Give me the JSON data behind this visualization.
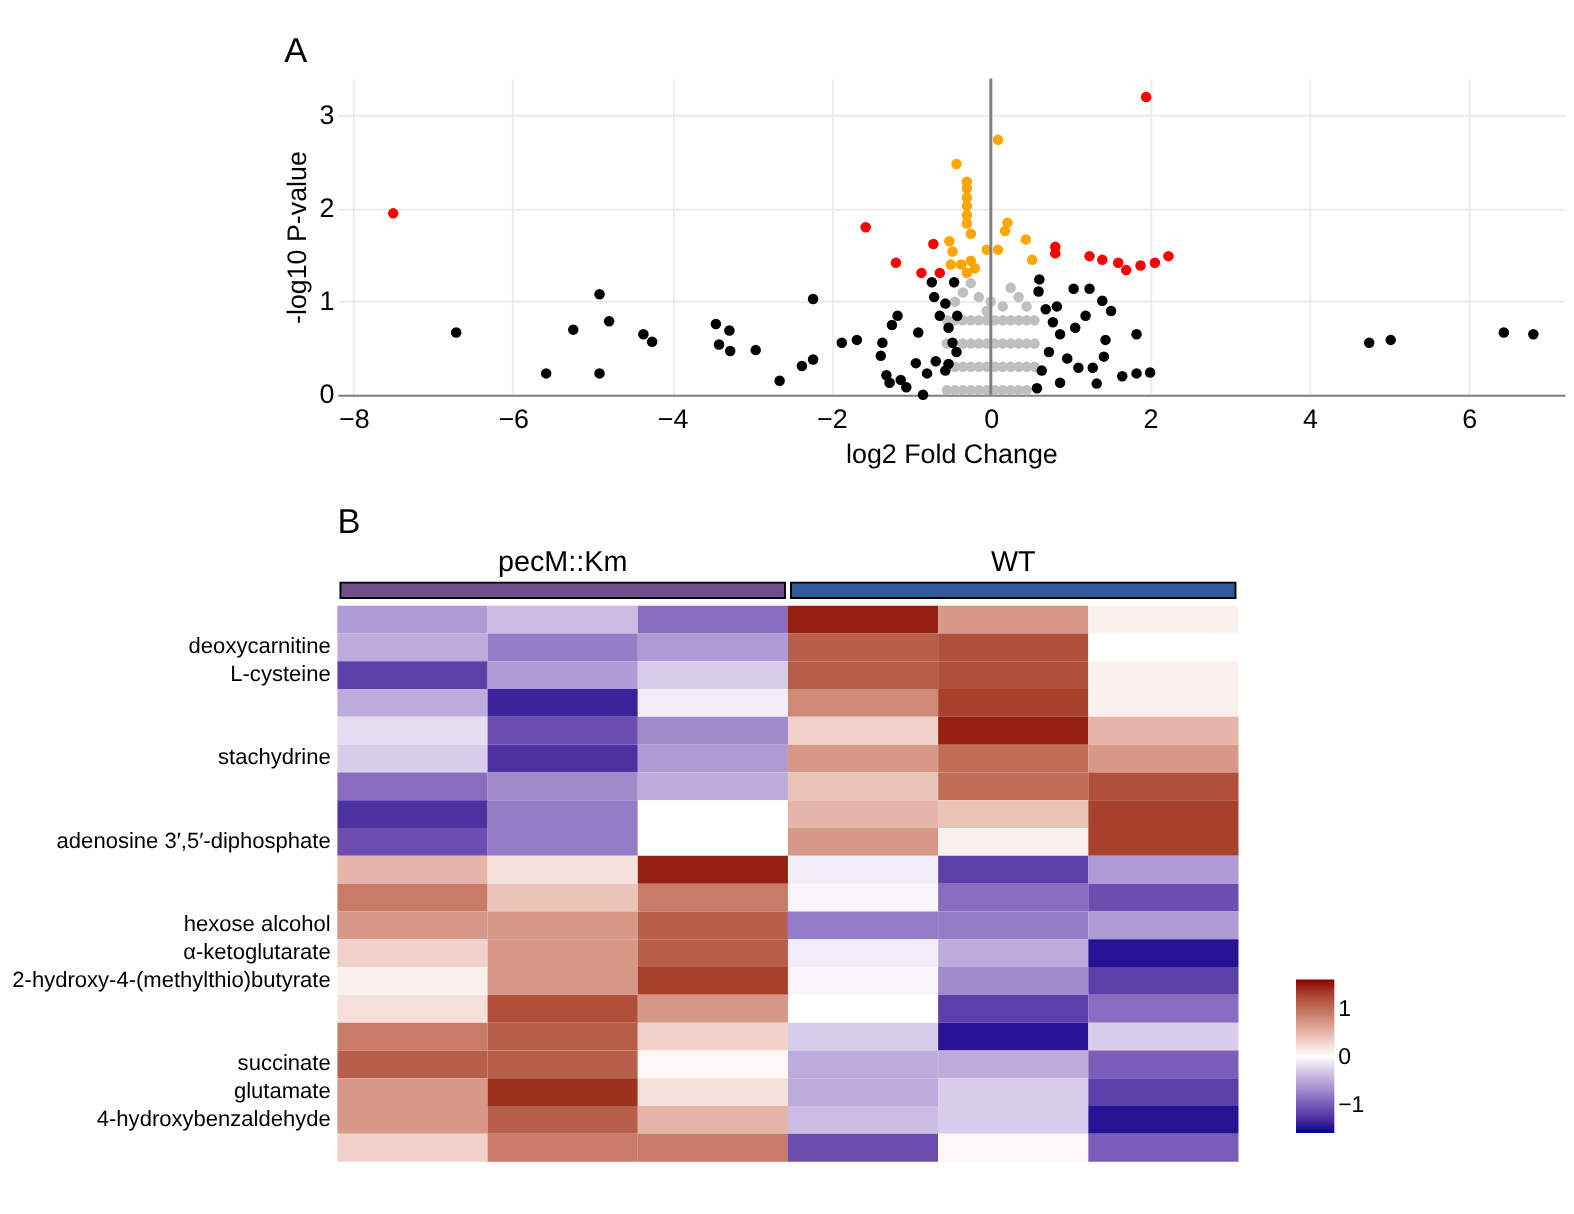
{
  "chart_data": [
    {
      "type": "scatter",
      "title": "A",
      "xlabel": "log2 Fold Change",
      "ylabel": "-log10 P-value",
      "xlim": [
        -8.2,
        7.2
      ],
      "ylim": [
        0,
        3.4
      ],
      "xticks": [
        -8,
        -6,
        -4,
        -2,
        0,
        2,
        4,
        6
      ],
      "yticks": [
        0,
        1,
        2,
        3
      ],
      "grid": true,
      "legend": false,
      "marker": "circle",
      "ref_lines": [
        {
          "axis": "x",
          "value": 0,
          "color": "#7f7f7f"
        }
      ],
      "series": [
        {
          "color": "#bfbfbf",
          "x": [
            -0.55,
            -0.45,
            -0.35,
            -0.25,
            -0.15,
            -0.05,
            0.05,
            0.15,
            0.25,
            0.35,
            0.45,
            -0.45,
            -0.35,
            -0.25,
            -0.15,
            -0.05,
            0.05,
            0.15,
            0.25,
            0.35,
            0.45,
            0.55,
            -0.55,
            -0.35,
            -0.25,
            -0.15,
            -0.05,
            0.05,
            0.15,
            0.25,
            0.35,
            0.45,
            0.55,
            -0.55,
            -0.45,
            -0.35,
            -0.25,
            -0.15,
            -0.05,
            0.05,
            0.15,
            0.25,
            0.35,
            0.45,
            0.55,
            -0.35,
            -0.25,
            -0.15,
            0.25,
            0.35,
            0.15,
            -0.45,
            0.45,
            0.0,
            -0.05
          ],
          "values": [
            0.05,
            0.05,
            0.05,
            0.05,
            0.05,
            0.05,
            0.05,
            0.05,
            0.05,
            0.05,
            0.05,
            0.3,
            0.3,
            0.3,
            0.3,
            0.3,
            0.3,
            0.3,
            0.3,
            0.3,
            0.3,
            0.3,
            0.55,
            0.55,
            0.55,
            0.55,
            0.55,
            0.55,
            0.55,
            0.55,
            0.55,
            0.55,
            0.55,
            0.8,
            0.8,
            0.8,
            0.8,
            0.8,
            0.8,
            0.8,
            0.8,
            0.8,
            0.8,
            0.8,
            0.8,
            1.1,
            1.2,
            1.05,
            1.15,
            1.05,
            0.95,
            1.0,
            0.95,
            1.0,
            0.9
          ]
        },
        {
          "color": "#000000",
          "x": [
            -6.71,
            -5.58,
            -5.24,
            -4.91,
            -4.91,
            -4.79,
            -4.36,
            -4.25,
            -3.45,
            -3.41,
            -3.28,
            -3.27,
            -2.95,
            -2.65,
            -2.37,
            -2.23,
            -2.23,
            -1.87,
            -1.68,
            -1.36,
            -1.38,
            -1.17,
            -1.24,
            -1.31,
            -1.27,
            -1.13,
            -1.06,
            -0.94,
            -0.91,
            -0.85,
            -0.8,
            -0.74,
            -0.71,
            -0.64,
            -0.69,
            -0.57,
            -0.53,
            -0.57,
            -0.53,
            -0.46,
            -0.43,
            -0.48,
            -0.42,
            4.75,
            5.02,
            6.44,
            6.81,
            1.83,
            1.65,
            1.83,
            2.0,
            1.33,
            1.28,
            1.42,
            1.4,
            1.51,
            1.44,
            1.24,
            1.04,
            1.1,
            0.61,
            0.6,
            0.69,
            0.78,
            0.87,
            0.73,
            0.64,
            0.87,
            0.96,
            1.06,
            1.19,
            0.58,
            0.83
          ],
          "values": [
            0.67,
            0.23,
            0.7,
            1.08,
            0.23,
            0.79,
            0.65,
            0.57,
            0.76,
            0.54,
            0.69,
            0.47,
            0.48,
            0.15,
            0.31,
            1.03,
            0.38,
            0.56,
            0.59,
            0.56,
            0.42,
            0.85,
            0.75,
            0.21,
            0.13,
            0.16,
            0.08,
            0.34,
            0.67,
            0.0,
            0.23,
            1.21,
            1.05,
            0.85,
            0.36,
            0.98,
            0.72,
            0.26,
            0.33,
            1.21,
            0.46,
            0.56,
            0.85,
            0.56,
            0.59,
            0.67,
            0.65,
            0.65,
            0.2,
            0.23,
            0.24,
            0.12,
            0.29,
            0.41,
            1.01,
            0.9,
            0.59,
            1.14,
            1.14,
            0.29,
            1.24,
            1.11,
            0.92,
            0.78,
            0.65,
            0.46,
            0.26,
            0.13,
            0.39,
            0.72,
            0.85,
            0.07,
            0.95
          ]
        },
        {
          "color": "#ffa500",
          "x": [
            0.09,
            -0.43,
            -0.3,
            -0.3,
            -0.3,
            -0.3,
            -0.3,
            -0.3,
            -0.25,
            0.21,
            0.18,
            -0.52,
            -0.48,
            -0.05,
            0.09,
            0.44,
            0.52,
            -0.5,
            -0.25,
            -0.2,
            -0.3,
            -0.37
          ],
          "values": [
            2.74,
            2.48,
            2.29,
            2.22,
            2.12,
            2.03,
            1.93,
            1.84,
            1.73,
            1.85,
            1.76,
            1.65,
            1.54,
            1.56,
            1.56,
            1.67,
            1.45,
            1.4,
            1.44,
            1.36,
            1.31,
            1.4
          ]
        },
        {
          "color": "#ff0000",
          "x": [
            -7.5,
            -1.57,
            -1.19,
            -0.72,
            -0.87,
            -0.64,
            0.81,
            0.81,
            1.24,
            1.4,
            1.6,
            1.7,
            1.88,
            2.06,
            2.23,
            1.95
          ],
          "values": [
            1.95,
            1.8,
            1.42,
            1.62,
            1.31,
            1.31,
            1.59,
            1.52,
            1.49,
            1.45,
            1.42,
            1.34,
            1.39,
            1.42,
            1.49,
            3.2
          ]
        }
      ]
    },
    {
      "type": "heatmap",
      "title": "B",
      "clim": [
        -1.6,
        1.6
      ],
      "cticks": [
        -1,
        0,
        1
      ],
      "annotations": [
        "pecM::Km",
        "WT"
      ],
      "categories": [
        null,
        null,
        null,
        null,
        null,
        null
      ],
      "y_categories": [
        null,
        "deoxycarnitine",
        "L-cysteine",
        null,
        null,
        "stachydrine",
        null,
        null,
        "adenosine 3′,5′-diphosphate",
        null,
        null,
        "hexose alcohol",
        "α-ketoglutarate",
        "2-hydroxy-4-(methylthio)butyrate",
        null,
        null,
        "succinate",
        "glutamate",
        "4-hydroxybenzaldehyde",
        null
      ],
      "cells": [
        [
          -0.6,
          -0.4,
          -0.9,
          1.5,
          0.7,
          0.1
        ],
        [
          -0.5,
          -0.8,
          -0.6,
          1.1,
          1.2,
          0.0
        ],
        [
          -1.2,
          -0.6,
          -0.3,
          1.1,
          1.2,
          0.1
        ],
        [
          -0.5,
          -1.4,
          -0.1,
          0.8,
          1.3,
          0.1
        ],
        [
          -0.2,
          -1.1,
          -0.7,
          0.3,
          1.5,
          0.5
        ],
        [
          -0.3,
          -1.3,
          -0.6,
          0.7,
          1.0,
          0.7
        ],
        [
          -0.9,
          -0.7,
          -0.5,
          0.4,
          1.0,
          1.2
        ],
        [
          -1.3,
          -0.8,
          0.0,
          0.5,
          0.4,
          1.3
        ],
        [
          -1.1,
          -0.8,
          0.0,
          0.7,
          0.1,
          1.3
        ],
        [
          0.5,
          0.2,
          1.5,
          -0.1,
          -1.2,
          -0.6
        ],
        [
          0.9,
          0.4,
          0.9,
          -0.05,
          -0.9,
          -1.1
        ],
        [
          0.7,
          0.7,
          1.1,
          -0.8,
          -0.8,
          -0.6
        ],
        [
          0.3,
          0.7,
          1.1,
          -0.1,
          -0.5,
          -1.5
        ],
        [
          0.1,
          0.7,
          1.3,
          -0.05,
          -0.7,
          -1.2
        ],
        [
          0.2,
          1.2,
          0.7,
          0.0,
          -1.2,
          -0.9
        ],
        [
          0.9,
          1.1,
          0.3,
          -0.3,
          -1.5,
          -0.3
        ],
        [
          1.1,
          1.1,
          0.05,
          -0.5,
          -0.5,
          -1.0
        ],
        [
          0.7,
          1.4,
          0.2,
          -0.5,
          -0.3,
          -1.2
        ],
        [
          0.7,
          1.1,
          0.5,
          -0.4,
          -0.3,
          -1.5
        ],
        [
          0.3,
          0.9,
          0.9,
          -1.1,
          0.05,
          -1.0
        ]
      ]
    }
  ]
}
